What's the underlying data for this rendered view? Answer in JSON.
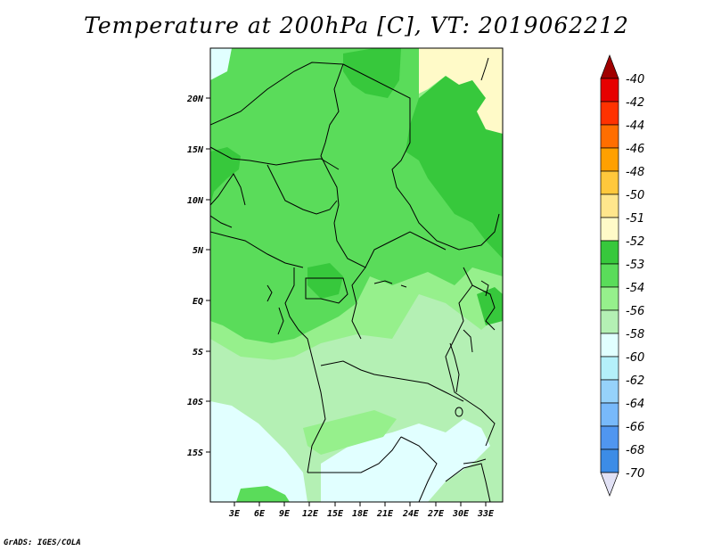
{
  "title": "Temperature at 200hPa [C], VT: 2019062212",
  "credit": "GrADS: IGES/COLA",
  "map": {
    "lon_range": [
      -2,
      35
    ],
    "lat_range": [
      -20,
      25
    ],
    "lon_ticks": [
      "3E",
      "6E",
      "9E",
      "12E",
      "15E",
      "18E",
      "21E",
      "24E",
      "27E",
      "30E",
      "33E"
    ],
    "lat_ticks": [
      "20N",
      "15N",
      "10N",
      "5N",
      "EQ",
      "5S",
      "10S",
      "15S"
    ]
  },
  "colorbar": {
    "labels": [
      "-40",
      "-42",
      "-44",
      "-46",
      "-48",
      "-50",
      "-51",
      "-52",
      "-53",
      "-54",
      "-56",
      "-58",
      "-60",
      "-62",
      "-64",
      "-66",
      "-68",
      "-70"
    ],
    "colors": [
      "#a00000",
      "#e60000",
      "#ff3200",
      "#ff6e00",
      "#ffa000",
      "#ffc83c",
      "#ffe68c",
      "#fffac8",
      "#37c83c",
      "#5adc5a",
      "#96f08c",
      "#b4f0b4",
      "#e1ffff",
      "#b4f0fa",
      "#96d2fa",
      "#78b9fa",
      "#5096f0",
      "#3c8ce6",
      "#2864d2",
      "#1e3cb4",
      "#0a0a78",
      "#e1e1f5"
    ]
  },
  "field_colors": {
    "c51": "#fffac8",
    "c52": "#37c83c",
    "c53": "#5adc5a",
    "c54": "#96f08c",
    "c55": "#b4f0b4",
    "c56": "#e1ffff"
  }
}
